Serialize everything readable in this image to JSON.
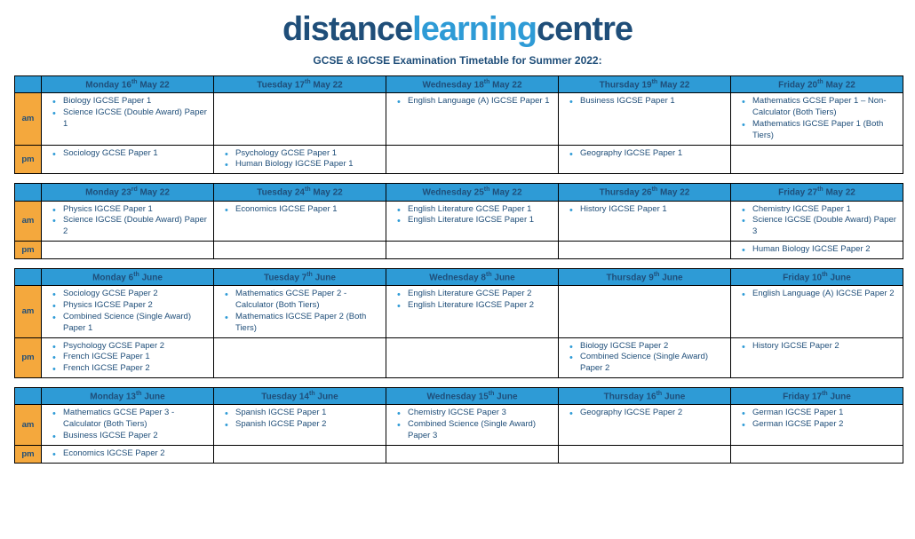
{
  "colors": {
    "header_bg": "#2e9bd6",
    "session_bg": "#f4a83d",
    "border": "#000000",
    "text_navy": "#1f4e79",
    "text_light_blue": "#2e9bd6",
    "page_bg": "#ffffff"
  },
  "logo": {
    "part1": "distance",
    "part2": "learning",
    "part3": "centre"
  },
  "subtitle": "GCSE & IGCSE Examination Timetable for Summer 2022:",
  "sessions": {
    "am": "am",
    "pm": "pm"
  },
  "weeks": [
    {
      "days": [
        {
          "label": "Monday 16",
          "ord": "th",
          "suffix": " May 22"
        },
        {
          "label": "Tuesday 17",
          "ord": "th",
          "suffix": " May 22"
        },
        {
          "label": "Wednesday 18",
          "ord": "th",
          "suffix": " May 22"
        },
        {
          "label": "Thursday 19",
          "ord": "th",
          "suffix": " May 22"
        },
        {
          "label": "Friday 20",
          "ord": "th",
          "suffix": " May 22"
        }
      ],
      "am": [
        [
          "Biology IGCSE Paper 1",
          "Science IGCSE (Double Award) Paper 1"
        ],
        [],
        [
          "English Language (A) IGCSE Paper 1"
        ],
        [
          "Business IGCSE Paper 1"
        ],
        [
          "Mathematics GCSE Paper 1 – Non-Calculator (Both Tiers)",
          "Mathematics IGCSE Paper 1 (Both Tiers)"
        ]
      ],
      "pm": [
        [
          "Sociology GCSE Paper 1"
        ],
        [
          "Psychology GCSE Paper 1",
          "Human Biology IGCSE Paper 1"
        ],
        [],
        [
          "Geography IGCSE Paper 1"
        ],
        []
      ]
    },
    {
      "days": [
        {
          "label": "Monday 23",
          "ord": "rd",
          "suffix": " May 22"
        },
        {
          "label": "Tuesday 24",
          "ord": "th",
          "suffix": " May 22"
        },
        {
          "label": "Wednesday 25",
          "ord": "th",
          "suffix": " May 22"
        },
        {
          "label": "Thursday 26",
          "ord": "th",
          "suffix": " May 22"
        },
        {
          "label": "Friday 27",
          "ord": "th",
          "suffix": " May 22"
        }
      ],
      "am": [
        [
          "Physics IGCSE Paper 1",
          "Science IGCSE (Double Award) Paper 2"
        ],
        [
          "Economics IGCSE Paper 1"
        ],
        [
          "English Literature GCSE Paper 1",
          "English Literature IGCSE Paper 1"
        ],
        [
          "History IGCSE Paper 1"
        ],
        [
          "Chemistry IGCSE Paper 1",
          "Science IGCSE (Double Award) Paper 3"
        ]
      ],
      "pm": [
        [],
        [],
        [],
        [],
        [
          "Human Biology IGCSE Paper 2"
        ]
      ]
    },
    {
      "days": [
        {
          "label": "Monday 6",
          "ord": "th",
          "suffix": " June"
        },
        {
          "label": "Tuesday 7",
          "ord": "th",
          "suffix": " June"
        },
        {
          "label": "Wednesday 8",
          "ord": "th",
          "suffix": " June"
        },
        {
          "label": "Thursday 9",
          "ord": "th",
          "suffix": " June"
        },
        {
          "label": "Friday 10",
          "ord": "th",
          "suffix": " June"
        }
      ],
      "am": [
        [
          "Sociology GCSE Paper 2",
          "Physics IGCSE Paper 2",
          "Combined Science (Single Award) Paper 1"
        ],
        [
          "Mathematics GCSE Paper 2 - Calculator (Both Tiers)",
          "Mathematics IGCSE Paper 2 (Both Tiers)"
        ],
        [
          "English Literature GCSE Paper 2",
          "English Literature IGCSE Paper 2"
        ],
        [],
        [
          "English Language (A) IGCSE Paper 2"
        ]
      ],
      "pm": [
        [
          "Psychology GCSE Paper 2",
          "French IGCSE Paper 1",
          "French IGCSE Paper 2"
        ],
        [],
        [],
        [
          "Biology IGCSE Paper 2",
          "Combined Science (Single Award) Paper 2"
        ],
        [
          "History IGCSE Paper 2"
        ]
      ]
    },
    {
      "days": [
        {
          "label": "Monday 13",
          "ord": "th",
          "suffix": " June"
        },
        {
          "label": "Tuesday 14",
          "ord": "th",
          "suffix": " June"
        },
        {
          "label": "Wednesday 15",
          "ord": "th",
          "suffix": " June"
        },
        {
          "label": "Thursday 16",
          "ord": "th",
          "suffix": " June"
        },
        {
          "label": "Friday 17",
          "ord": "th",
          "suffix": " June"
        }
      ],
      "am": [
        [
          "Mathematics GCSE Paper 3 - Calculator (Both Tiers)",
          "Business IGCSE Paper 2"
        ],
        [
          "Spanish IGCSE Paper 1",
          "Spanish IGCSE Paper 2"
        ],
        [
          "Chemistry IGCSE Paper 3",
          "Combined Science (Single Award) Paper 3"
        ],
        [
          "Geography IGCSE Paper 2"
        ],
        [
          "German IGCSE Paper 1",
          "German IGCSE Paper 2"
        ]
      ],
      "pm": [
        [
          "Economics IGCSE Paper 2"
        ],
        [],
        [],
        [],
        []
      ]
    }
  ]
}
